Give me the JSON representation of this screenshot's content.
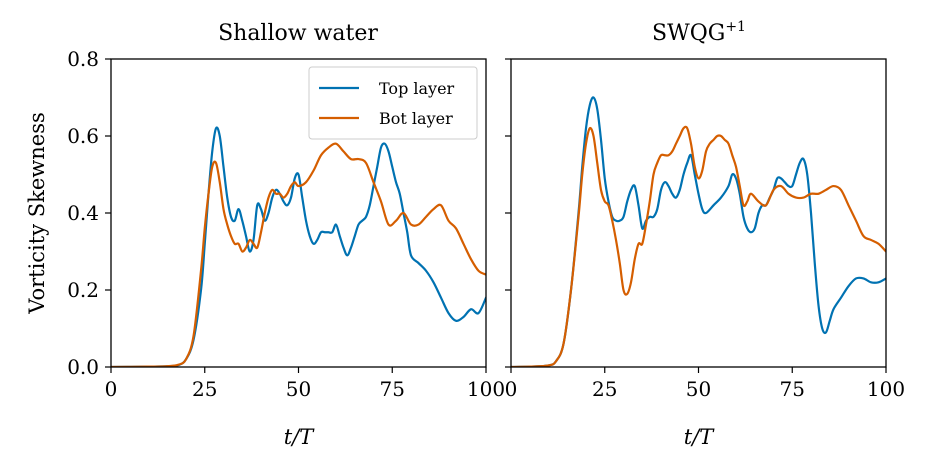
{
  "figure": {
    "ylabel": "Vorticity Skewness",
    "xlabel_italic": "t/T"
  },
  "colors": {
    "top_layer": "#0072b2",
    "bot_layer": "#d55e00"
  },
  "chart_data": [
    {
      "type": "line",
      "title": "Shallow water",
      "xlabel": "t/T",
      "ylabel": "Vorticity Skewness",
      "xlim": [
        0,
        100
      ],
      "ylim": [
        0,
        0.8
      ],
      "xticks": [
        0,
        25,
        50,
        75,
        100
      ],
      "yticks": [
        0.0,
        0.2,
        0.4,
        0.6,
        0.8
      ],
      "grid": false,
      "legend": {
        "placement": "top-right"
      },
      "series": [
        {
          "name": "Top layer",
          "color": "#0072b2",
          "x": [
            0,
            10,
            15,
            18,
            20,
            22,
            24,
            25,
            26,
            27,
            28,
            29,
            30,
            31,
            32,
            33,
            34,
            35,
            36,
            37,
            38,
            39,
            40,
            41,
            42,
            43,
            44,
            45,
            46,
            47,
            48,
            49,
            50,
            51,
            52,
            53,
            54,
            55,
            56,
            57,
            58,
            59,
            60,
            61,
            62,
            63,
            64,
            65,
            66,
            67,
            68,
            69,
            70,
            71,
            72,
            73,
            74,
            75,
            76,
            77,
            78,
            79,
            80,
            82,
            84,
            86,
            88,
            90,
            92,
            94,
            96,
            98,
            100
          ],
          "y": [
            0,
            0.001,
            0.002,
            0.005,
            0.02,
            0.07,
            0.2,
            0.32,
            0.45,
            0.56,
            0.62,
            0.6,
            0.52,
            0.44,
            0.39,
            0.38,
            0.41,
            0.38,
            0.34,
            0.3,
            0.33,
            0.42,
            0.41,
            0.38,
            0.4,
            0.44,
            0.46,
            0.45,
            0.43,
            0.42,
            0.44,
            0.49,
            0.5,
            0.44,
            0.38,
            0.34,
            0.32,
            0.33,
            0.35,
            0.35,
            0.35,
            0.35,
            0.37,
            0.34,
            0.31,
            0.29,
            0.31,
            0.34,
            0.37,
            0.38,
            0.39,
            0.42,
            0.47,
            0.52,
            0.57,
            0.58,
            0.56,
            0.52,
            0.48,
            0.45,
            0.4,
            0.35,
            0.29,
            0.27,
            0.25,
            0.22,
            0.18,
            0.14,
            0.12,
            0.13,
            0.15,
            0.14,
            0.18
          ]
        },
        {
          "name": "Bot layer",
          "color": "#d55e00",
          "x": [
            0,
            10,
            15,
            18,
            20,
            22,
            24,
            25,
            26,
            27,
            28,
            29,
            30,
            31,
            32,
            33,
            34,
            35,
            36,
            37,
            38,
            39,
            40,
            41,
            42,
            43,
            44,
            45,
            46,
            47,
            48,
            49,
            50,
            52,
            54,
            56,
            58,
            60,
            62,
            64,
            66,
            68,
            70,
            72,
            74,
            76,
            78,
            80,
            82,
            84,
            86,
            88,
            90,
            92,
            94,
            96,
            98,
            100
          ],
          "y": [
            0,
            0.001,
            0.002,
            0.006,
            0.02,
            0.08,
            0.25,
            0.36,
            0.45,
            0.52,
            0.53,
            0.48,
            0.41,
            0.37,
            0.34,
            0.32,
            0.32,
            0.3,
            0.31,
            0.33,
            0.32,
            0.31,
            0.35,
            0.4,
            0.44,
            0.46,
            0.45,
            0.45,
            0.44,
            0.45,
            0.47,
            0.48,
            0.47,
            0.48,
            0.51,
            0.55,
            0.57,
            0.58,
            0.56,
            0.54,
            0.54,
            0.53,
            0.48,
            0.43,
            0.37,
            0.38,
            0.4,
            0.37,
            0.37,
            0.39,
            0.41,
            0.42,
            0.38,
            0.36,
            0.32,
            0.28,
            0.25,
            0.24
          ]
        }
      ]
    },
    {
      "type": "line",
      "title": "SWQG",
      "title_sup": "+1",
      "xlabel": "t/T",
      "xlim": [
        0,
        100
      ],
      "ylim": [
        0,
        0.8
      ],
      "xticks": [
        0,
        25,
        50,
        75,
        100
      ],
      "yticks": [
        0.0,
        0.2,
        0.4,
        0.6,
        0.8
      ],
      "grid": false,
      "series": [
        {
          "name": "Top layer",
          "color": "#0072b2",
          "x": [
            0,
            5,
            10,
            12,
            14,
            16,
            18,
            19,
            20,
            21,
            22,
            23,
            24,
            25,
            26,
            27,
            28,
            29,
            30,
            31,
            32,
            33,
            34,
            35,
            36,
            37,
            38,
            39,
            40,
            41,
            42,
            43,
            44,
            45,
            46,
            47,
            48,
            49,
            50,
            51,
            52,
            54,
            56,
            58,
            59,
            60,
            61,
            62,
            63,
            64,
            65,
            66,
            67,
            68,
            69,
            70,
            71,
            72,
            73,
            74,
            75,
            76,
            77,
            78,
            79,
            80,
            81,
            82,
            83,
            84,
            85,
            86,
            88,
            90,
            92,
            94,
            96,
            98,
            100
          ],
          "y": [
            0,
            0.001,
            0.004,
            0.015,
            0.06,
            0.2,
            0.4,
            0.52,
            0.62,
            0.68,
            0.7,
            0.67,
            0.59,
            0.49,
            0.43,
            0.39,
            0.38,
            0.38,
            0.39,
            0.43,
            0.46,
            0.47,
            0.42,
            0.36,
            0.38,
            0.39,
            0.39,
            0.41,
            0.46,
            0.48,
            0.47,
            0.45,
            0.44,
            0.46,
            0.5,
            0.53,
            0.55,
            0.5,
            0.45,
            0.41,
            0.4,
            0.42,
            0.44,
            0.47,
            0.5,
            0.49,
            0.45,
            0.39,
            0.36,
            0.35,
            0.36,
            0.4,
            0.42,
            0.42,
            0.44,
            0.46,
            0.49,
            0.49,
            0.48,
            0.47,
            0.47,
            0.5,
            0.53,
            0.54,
            0.5,
            0.4,
            0.27,
            0.16,
            0.1,
            0.09,
            0.12,
            0.15,
            0.18,
            0.21,
            0.23,
            0.23,
            0.22,
            0.22,
            0.23
          ]
        },
        {
          "name": "Bot layer",
          "color": "#d55e00",
          "x": [
            0,
            5,
            10,
            12,
            14,
            16,
            18,
            19,
            20,
            21,
            22,
            23,
            24,
            25,
            26,
            27,
            28,
            29,
            30,
            31,
            32,
            33,
            34,
            35,
            36,
            37,
            38,
            39,
            40,
            41,
            42,
            43,
            44,
            45,
            46,
            47,
            48,
            49,
            50,
            51,
            52,
            53,
            54,
            55,
            56,
            57,
            58,
            59,
            60,
            61,
            62,
            63,
            64,
            66,
            68,
            70,
            72,
            74,
            76,
            78,
            80,
            82,
            84,
            86,
            88,
            90,
            92,
            94,
            96,
            98,
            100
          ],
          "y": [
            0,
            0.001,
            0.004,
            0.015,
            0.06,
            0.2,
            0.39,
            0.5,
            0.58,
            0.62,
            0.6,
            0.53,
            0.46,
            0.43,
            0.42,
            0.38,
            0.33,
            0.27,
            0.2,
            0.19,
            0.22,
            0.28,
            0.32,
            0.32,
            0.37,
            0.43,
            0.5,
            0.53,
            0.55,
            0.55,
            0.55,
            0.56,
            0.58,
            0.6,
            0.62,
            0.62,
            0.58,
            0.52,
            0.49,
            0.51,
            0.56,
            0.58,
            0.59,
            0.6,
            0.6,
            0.59,
            0.58,
            0.55,
            0.52,
            0.47,
            0.42,
            0.43,
            0.45,
            0.43,
            0.42,
            0.46,
            0.47,
            0.45,
            0.44,
            0.44,
            0.45,
            0.45,
            0.46,
            0.47,
            0.46,
            0.42,
            0.38,
            0.34,
            0.33,
            0.32,
            0.3
          ]
        }
      ]
    }
  ]
}
